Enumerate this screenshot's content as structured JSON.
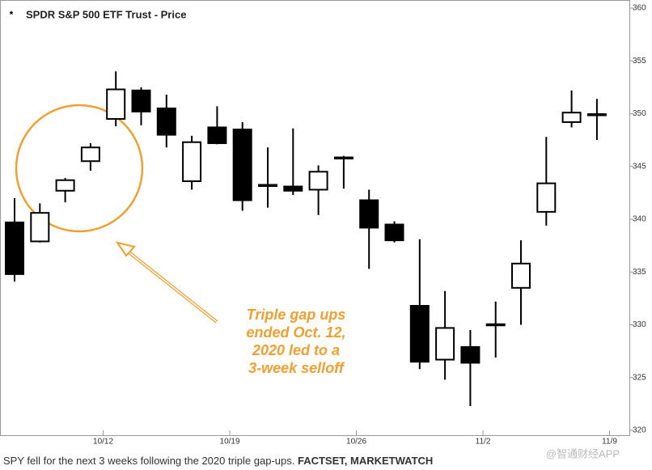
{
  "chart_data": {
    "type": "candlestick",
    "title": "SPDR S&P 500 ETF Trust - Price",
    "title_marker": "*",
    "categories": [
      null,
      null,
      null,
      null,
      "10/12",
      null,
      null,
      null,
      null,
      "10/19",
      null,
      null,
      null,
      null,
      "10/26",
      null,
      null,
      null,
      null,
      "11/2",
      null,
      null,
      null,
      null,
      "11/9"
    ],
    "open": [
      339.7,
      337.9,
      342.7,
      345.5,
      349.5,
      352.2,
      350.5,
      343.6,
      348.7,
      348.5,
      343.2,
      343.1,
      342.8,
      345.8,
      341.8,
      339.5,
      331.8,
      326.7,
      327.9,
      330.0,
      333.5,
      340.7,
      349.2,
      349.9,
      null
    ],
    "high": [
      342.0,
      341.5,
      343.9,
      347.2,
      354.0,
      352.5,
      351.8,
      347.9,
      350.7,
      349.2,
      346.8,
      348.6,
      345.1,
      346.0,
      342.8,
      339.8,
      338.1,
      333.2,
      329.5,
      332.2,
      338.0,
      347.8,
      352.2,
      351.4,
      null
    ],
    "low": [
      334.1,
      337.8,
      341.6,
      344.6,
      348.8,
      348.9,
      346.8,
      342.8,
      347.1,
      340.8,
      341.1,
      342.3,
      340.4,
      342.9,
      335.3,
      337.8,
      325.8,
      324.8,
      322.3,
      326.9,
      330.0,
      339.4,
      348.7,
      347.5,
      null
    ],
    "close": [
      334.8,
      340.6,
      343.7,
      346.8,
      352.3,
      350.2,
      348.0,
      347.3,
      347.2,
      341.8,
      343.2,
      342.7,
      344.5,
      345.8,
      339.2,
      338.0,
      326.5,
      329.7,
      326.4,
      330.0,
      335.8,
      343.4,
      350.1,
      349.9,
      null
    ],
    "up_color": "#ffffff",
    "down_color": "#000000",
    "edge_color": "#000000",
    "ylim": [
      320,
      360
    ],
    "yticks": [
      320,
      325,
      330,
      335,
      340,
      345,
      350,
      355,
      360
    ],
    "y_axis_side": "right",
    "annotation": [
      "Triple gap ups",
      "ended Oct. 12,",
      "2020 led to a",
      "3-week selloff"
    ],
    "annotation_color": "#f0a030"
  },
  "caption": {
    "text": "SPY fell for the next 3 weeks following the 2020 triple gap-ups. ",
    "source": "FACTSET, MARKETWATCH"
  },
  "watermark": "@智通财经APP"
}
